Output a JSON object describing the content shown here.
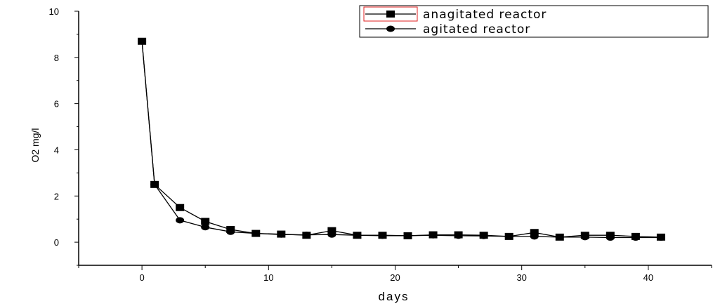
{
  "chart_data": {
    "type": "line",
    "xlabel": "days",
    "ylabel": "O2 mg/l",
    "xlim": [
      -5,
      45
    ],
    "ylim": [
      -1,
      10
    ],
    "xticks": [
      0,
      10,
      20,
      30,
      40
    ],
    "yticks": [
      0,
      2,
      4,
      6,
      8,
      10
    ],
    "grid": false,
    "legend_position": "top-right",
    "series": [
      {
        "name": "anagitated reactor",
        "marker": "square",
        "color": "#000000",
        "x": [
          0,
          1,
          3,
          5,
          7,
          9,
          11,
          13,
          15,
          17,
          19,
          21,
          23,
          25,
          27,
          29,
          31,
          33,
          35,
          37,
          39,
          41
        ],
        "y": [
          8.7,
          2.5,
          1.5,
          0.9,
          0.55,
          0.38,
          0.35,
          0.3,
          0.5,
          0.3,
          0.3,
          0.28,
          0.32,
          0.32,
          0.3,
          0.25,
          0.42,
          0.22,
          0.3,
          0.3,
          0.25,
          0.22
        ]
      },
      {
        "name": "agitated reactor",
        "marker": "circle",
        "color": "#000000",
        "x": [
          0,
          1,
          3,
          5,
          7,
          9,
          11,
          13,
          15,
          17,
          19,
          21,
          23,
          25,
          27,
          29,
          31,
          33,
          35,
          37,
          39,
          41
        ],
        "y": [
          8.7,
          2.5,
          0.95,
          0.65,
          0.45,
          0.38,
          0.33,
          0.32,
          0.33,
          0.3,
          0.28,
          0.28,
          0.3,
          0.28,
          0.27,
          0.25,
          0.25,
          0.22,
          0.22,
          0.2,
          0.2,
          0.2
        ]
      }
    ]
  }
}
